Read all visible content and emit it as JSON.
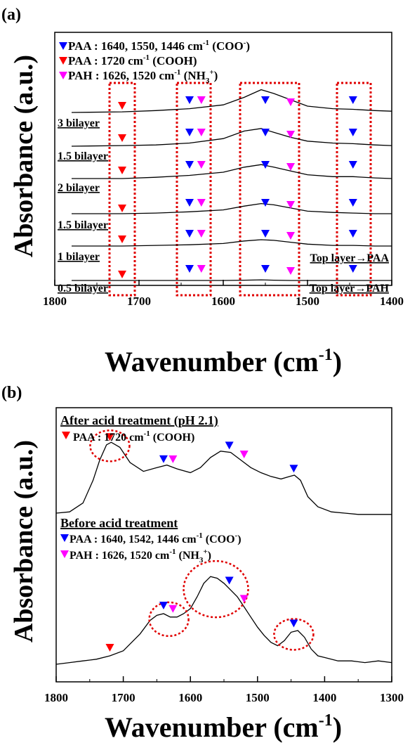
{
  "panels": [
    {
      "id": "a",
      "panel_label": "(a)",
      "ylabel": "Absorbance (a.u.)",
      "xlabel_base": "Wavenumber (cm",
      "xlabel_sup": "-1",
      "xlabel_end": ")",
      "xticks": [
        "1800",
        "1700",
        "1600",
        "1500",
        "1400"
      ],
      "legend": [
        {
          "marker": "blue",
          "text": "PAA : 1640, 1550, 1446 cm",
          "sup": "-1",
          "tail": " (COO",
          "tail_sup": "-",
          "end": ")"
        },
        {
          "marker": "red",
          "text": "PAA : 1720 cm",
          "sup": "-1",
          "tail": " (COOH)",
          "tail_sup": "",
          "end": ""
        },
        {
          "marker": "magenta",
          "text": "PAH : 1626, 1520 cm",
          "sup": "-1",
          "tail": " (NH",
          "tail_sub": "3",
          "tail_sup": "+",
          "end": ")"
        }
      ],
      "trace_labels": [
        "3 bilayer",
        "1.5 bilayer",
        "2 bilayer",
        "1.5 bilayer",
        "1 bilayer",
        "0.5 bilayer"
      ],
      "annotations": [
        "Top layer→PAA",
        "Top layer→PAH"
      ]
    },
    {
      "id": "b",
      "panel_label": "(b)",
      "ylabel": "Absorbance (a.u.)",
      "xlabel_base": "Wavenumber (cm",
      "xlabel_sup": "-1",
      "xlabel_end": ")",
      "xticks": [
        "1800",
        "1700",
        "1600",
        "1500",
        "1400",
        "1300"
      ],
      "top_title": "After acid treatment (pH 2.1)",
      "top_legend": {
        "marker": "red",
        "text": "PAA : 1720 cm",
        "sup": "-1",
        "tail": " (COOH)"
      },
      "bottom_title": "Before acid treatment",
      "bottom_legend": [
        {
          "marker": "blue",
          "text": "PAA : 1640, 1542, 1446 cm",
          "sup": "-1",
          "tail": " (COO",
          "tail_sup": "-",
          "end": ")"
        },
        {
          "marker": "magenta",
          "text": "PAH : 1626, 1520 cm",
          "sup": "-1",
          "tail": " (NH",
          "tail_sub": "3",
          "tail_sup": "+",
          "end": ")"
        }
      ]
    }
  ],
  "colors": {
    "blue": "#0000ff",
    "red": "#ff0000",
    "magenta": "#ff00ff",
    "box": "#e00000"
  },
  "chart_data": [
    {
      "type": "line",
      "panel": "a",
      "x_axis": {
        "reversed": true,
        "xlim": [
          1800,
          1400
        ],
        "ticks": [
          1800,
          1700,
          1600,
          1500,
          1400
        ]
      },
      "y_axis": {
        "ticks": false
      },
      "series": [
        {
          "name": "3 bilayer",
          "x": [
            1780,
            1720,
            1680,
            1640,
            1600,
            1575,
            1555,
            1540,
            1520,
            1500,
            1470,
            1446,
            1420,
            1400
          ],
          "y": [
            1.0,
            1.1,
            1.3,
            1.6,
            2.2,
            3.4,
            4.6,
            4.0,
            3.0,
            2.0,
            1.6,
            1.5,
            1.3,
            1.2
          ]
        },
        {
          "name": "1.5 bilayer",
          "x": [
            1780,
            1720,
            1680,
            1640,
            1600,
            1575,
            1555,
            1540,
            1520,
            1500,
            1470,
            1446,
            1420,
            1400
          ],
          "y": [
            1.0,
            1.1,
            1.2,
            1.5,
            2.2,
            3.4,
            3.8,
            3.2,
            2.4,
            1.8,
            1.5,
            1.4,
            1.2,
            1.1
          ]
        },
        {
          "name": "2 bilayer",
          "x": [
            1780,
            1720,
            1680,
            1640,
            1600,
            1575,
            1555,
            1540,
            1520,
            1500,
            1470,
            1446,
            1420,
            1400
          ],
          "y": [
            1.0,
            1.0,
            1.2,
            1.5,
            2.0,
            2.8,
            3.2,
            2.8,
            2.2,
            1.6,
            1.3,
            1.3,
            1.1,
            1.0
          ]
        },
        {
          "name": "1.5 bilayer",
          "x": [
            1780,
            1720,
            1680,
            1640,
            1600,
            1575,
            1555,
            1540,
            1520,
            1500,
            1470,
            1446,
            1420,
            1400
          ],
          "y": [
            1.0,
            1.0,
            1.1,
            1.3,
            1.6,
            2.2,
            2.6,
            2.4,
            1.9,
            1.4,
            1.2,
            1.1,
            1.0,
            1.0
          ]
        },
        {
          "name": "1 bilayer",
          "x": [
            1780,
            1720,
            1680,
            1640,
            1600,
            1575,
            1555,
            1540,
            1520,
            1500,
            1470,
            1446,
            1420,
            1400
          ],
          "y": [
            1.0,
            1.0,
            1.1,
            1.2,
            1.4,
            1.8,
            2.0,
            1.9,
            1.6,
            1.3,
            1.1,
            1.1,
            1.0,
            1.0
          ]
        },
        {
          "name": "0.5 bilayer",
          "x": [
            1780,
            1720,
            1680,
            1640,
            1600,
            1575,
            1555,
            1540,
            1520,
            1500,
            1470,
            1446,
            1420,
            1400
          ],
          "y": [
            1.0,
            1.0,
            1.0,
            1.0,
            1.0,
            1.05,
            1.1,
            1.05,
            1.0,
            1.0,
            1.0,
            1.0,
            1.0,
            1.0
          ]
        }
      ],
      "markers": {
        "red": [
          1720
        ],
        "blue": [
          1640,
          1550,
          1446
        ],
        "magenta": [
          1626,
          1520
        ]
      },
      "highlight_regions": [
        [
          1735,
          1705
        ],
        [
          1655,
          1615
        ],
        [
          1580,
          1510
        ],
        [
          1465,
          1425
        ]
      ]
    },
    {
      "type": "line",
      "panel": "b",
      "x_axis": {
        "reversed": true,
        "xlim": [
          1800,
          1300
        ],
        "ticks": [
          1800,
          1700,
          1600,
          1500,
          1400,
          1300
        ]
      },
      "y_axis": {
        "ticks": false
      },
      "series": [
        {
          "name": "After acid treatment (pH 2.1)",
          "x": [
            1800,
            1780,
            1760,
            1745,
            1735,
            1725,
            1718,
            1705,
            1690,
            1670,
            1650,
            1635,
            1620,
            1600,
            1585,
            1570,
            1555,
            1540,
            1525,
            1510,
            1495,
            1480,
            1465,
            1452,
            1445,
            1436,
            1425,
            1410,
            1390,
            1370,
            1350,
            1330,
            1300
          ],
          "y": [
            1.0,
            1.1,
            1.8,
            3.6,
            5.2,
            6.4,
            6.6,
            6.2,
            5.0,
            4.3,
            4.6,
            4.8,
            4.5,
            4.2,
            4.6,
            5.4,
            5.9,
            5.8,
            5.2,
            4.6,
            4.2,
            3.9,
            3.7,
            3.9,
            4.0,
            3.6,
            2.3,
            1.5,
            1.1,
            1.0,
            0.9,
            0.9,
            0.9
          ]
        },
        {
          "name": "Before acid treatment",
          "x": [
            1800,
            1780,
            1760,
            1740,
            1720,
            1700,
            1690,
            1675,
            1660,
            1650,
            1640,
            1630,
            1620,
            1610,
            1600,
            1590,
            1580,
            1570,
            1560,
            1550,
            1540,
            1530,
            1520,
            1510,
            1500,
            1490,
            1480,
            1470,
            1460,
            1450,
            1440,
            1430,
            1420,
            1410,
            1400,
            1380,
            1360,
            1340,
            1320,
            1300
          ],
          "y": [
            1.0,
            1.1,
            1.2,
            1.3,
            1.5,
            1.8,
            2.2,
            2.8,
            3.6,
            3.9,
            4.0,
            3.8,
            3.8,
            4.0,
            4.3,
            5.0,
            5.8,
            6.2,
            6.1,
            5.8,
            5.4,
            5.0,
            4.4,
            3.8,
            3.2,
            2.7,
            2.3,
            2.1,
            2.4,
            2.9,
            3.0,
            2.6,
            1.9,
            1.5,
            1.4,
            1.2,
            1.2,
            1.1,
            1.2,
            1.1
          ]
        }
      ],
      "markers": {
        "after": {
          "red": [
            1720
          ],
          "blue": [
            1640,
            1542,
            1446
          ],
          "magenta": [
            1626,
            1520
          ]
        },
        "before": {
          "red": [
            1720
          ],
          "blue": [
            1640,
            1542,
            1446
          ],
          "magenta": [
            1626,
            1520
          ]
        }
      },
      "highlight_regions": [
        {
          "series": "After acid treatment (pH 2.1)",
          "x": 1720
        },
        {
          "series": "Before acid treatment",
          "x": 1632
        },
        {
          "series": "Before acid treatment",
          "x": 1560
        },
        {
          "series": "Before acid treatment",
          "x": 1446
        }
      ]
    }
  ]
}
